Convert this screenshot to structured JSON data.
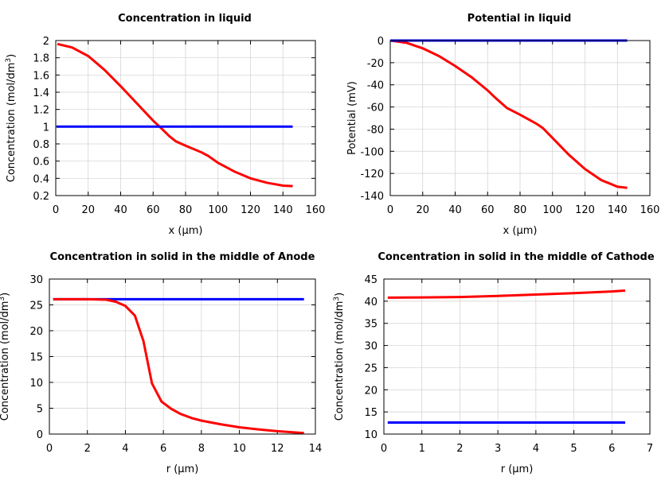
{
  "colors": {
    "series1": "#ff0000",
    "series2": "#0000ff",
    "grid": "#d0d0d0"
  },
  "chart_data": [
    {
      "type": "line",
      "title": "Concentration in liquid",
      "xlabel": "x (µm)",
      "ylabel": "Concentration (mol/dm",
      "ylabel_sup": "3",
      "ylabel_end": ")",
      "xlim": [
        0,
        160
      ],
      "ylim": [
        0.2,
        2
      ],
      "xticks": [
        0,
        20,
        40,
        60,
        80,
        100,
        120,
        140,
        160
      ],
      "yticks": [
        0.2,
        0.4,
        0.6,
        0.8,
        1,
        1.2,
        1.4,
        1.6,
        1.8,
        2
      ],
      "grid": true,
      "series": [
        {
          "color": "#ff0000",
          "x": [
            1,
            10,
            20,
            30,
            40,
            50,
            60,
            64,
            70,
            74,
            80,
            90,
            94,
            100,
            110,
            120,
            130,
            140,
            146
          ],
          "y": [
            1.96,
            1.92,
            1.82,
            1.66,
            1.47,
            1.27,
            1.07,
            1.0,
            0.89,
            0.83,
            0.78,
            0.7,
            0.66,
            0.58,
            0.48,
            0.4,
            0.35,
            0.315,
            0.31
          ]
        },
        {
          "color": "#0000ff",
          "x": [
            0.5,
            146
          ],
          "y": [
            1,
            1
          ]
        }
      ]
    },
    {
      "type": "line",
      "title": "Potential in liquid",
      "xlabel": "x (µm)",
      "ylabel": "Potential (mV)",
      "xlim": [
        0,
        160
      ],
      "ylim": [
        -140,
        0
      ],
      "xticks": [
        0,
        20,
        40,
        60,
        80,
        100,
        120,
        140,
        160
      ],
      "yticks": [
        -140,
        -120,
        -100,
        -80,
        -60,
        -40,
        -20,
        0
      ],
      "grid": true,
      "series": [
        {
          "color": "#ff0000",
          "x": [
            0,
            10,
            20,
            30,
            40,
            50,
            60,
            65,
            72,
            80,
            90,
            94,
            100,
            110,
            120,
            130,
            140,
            146
          ],
          "y": [
            0,
            -2,
            -7,
            -14,
            -23,
            -33,
            -45,
            -52,
            -61,
            -67,
            -75,
            -79,
            -88,
            -103,
            -116,
            -126,
            -132,
            -133
          ]
        },
        {
          "color": "#0000ff",
          "x": [
            0,
            146
          ],
          "y": [
            0,
            0
          ]
        }
      ]
    },
    {
      "type": "line",
      "title": "Concentration in solid in the middle of Anode",
      "xlabel": "r (µm)",
      "ylabel": "Concentration (mol/dm",
      "ylabel_sup": "3",
      "ylabel_end": ")",
      "xlim": [
        0,
        14
      ],
      "ylim": [
        0,
        30
      ],
      "xticks": [
        0,
        2,
        4,
        6,
        8,
        10,
        12,
        14
      ],
      "yticks": [
        0,
        5,
        10,
        15,
        20,
        25,
        30
      ],
      "grid": true,
      "series": [
        {
          "color": "#0000ff",
          "x": [
            0.2,
            13.4
          ],
          "y": [
            26.1,
            26.1
          ]
        },
        {
          "color": "#ff0000",
          "x": [
            0.2,
            2,
            3,
            3.5,
            4,
            4.5,
            4.95,
            5.4,
            5.9,
            6.4,
            6.9,
            7.5,
            8,
            9,
            10,
            11,
            12,
            13.4
          ],
          "y": [
            26.1,
            26.1,
            26.0,
            25.6,
            24.8,
            22.9,
            18,
            9.8,
            6.3,
            4.9,
            3.9,
            3.1,
            2.6,
            1.9,
            1.3,
            0.9,
            0.55,
            0.2
          ]
        }
      ]
    },
    {
      "type": "line",
      "title": "Concentration in solid in the middle of Cathode",
      "xlabel": "r (µm)",
      "ylabel": "Concentration (mol/dm",
      "ylabel_sup": "3",
      "ylabel_end": ")",
      "xlim": [
        0,
        7
      ],
      "ylim": [
        10,
        45
      ],
      "xticks": [
        0,
        1,
        2,
        3,
        4,
        5,
        6,
        7
      ],
      "yticks": [
        10,
        15,
        20,
        25,
        30,
        35,
        40,
        45
      ],
      "grid": true,
      "series": [
        {
          "color": "#ff0000",
          "x": [
            0.1,
            1,
            2,
            3,
            4,
            5,
            6,
            6.35
          ],
          "y": [
            40.8,
            40.85,
            40.95,
            41.2,
            41.5,
            41.8,
            42.2,
            42.4
          ]
        },
        {
          "color": "#0000ff",
          "x": [
            0.1,
            6.35
          ],
          "y": [
            12.6,
            12.6
          ]
        }
      ]
    }
  ]
}
